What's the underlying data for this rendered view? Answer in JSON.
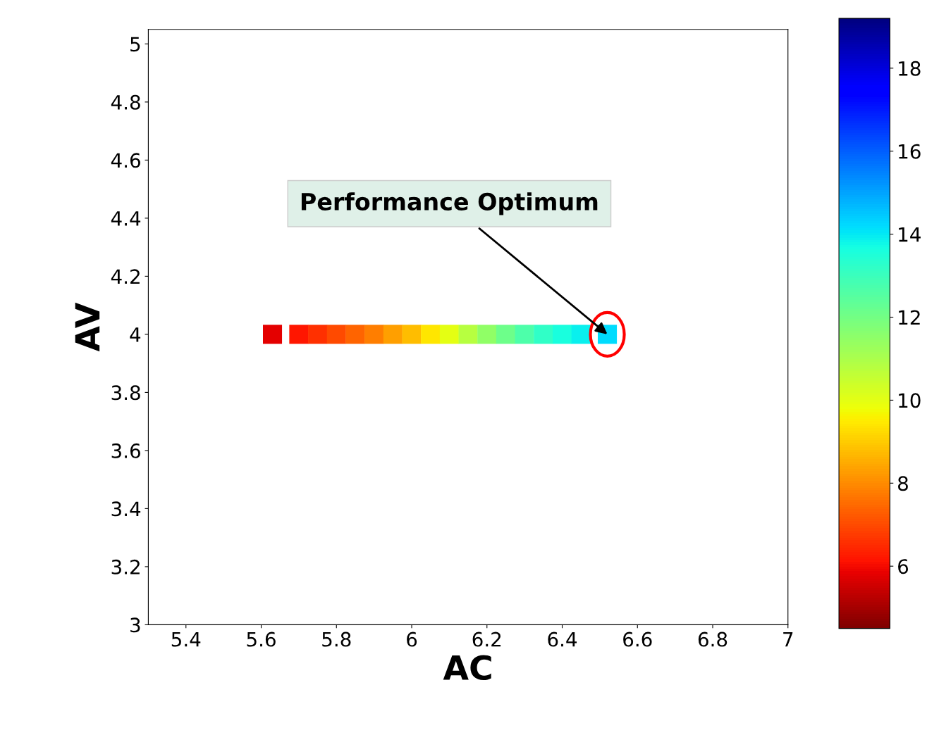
{
  "chart_data": {
    "type": "scatter",
    "xlabel": "AC",
    "ylabel": "AV",
    "x": [
      5.63,
      5.7,
      5.75,
      5.8,
      5.85,
      5.9,
      5.95,
      6.0,
      6.05,
      6.1,
      6.15,
      6.2,
      6.25,
      6.3,
      6.35,
      6.4,
      6.45,
      6.52
    ],
    "values": [
      4.0,
      4.0,
      4.0,
      4.0,
      4.0,
      4.0,
      4.0,
      4.0,
      4.0,
      4.0,
      4.0,
      4.0,
      4.0,
      4.0,
      4.0,
      4.0,
      4.0,
      4.0
    ],
    "cvalues": [
      5.8,
      6.2,
      6.6,
      7.0,
      7.4,
      7.8,
      8.3,
      8.8,
      9.4,
      10.0,
      10.8,
      11.5,
      12.1,
      12.7,
      13.2,
      13.6,
      13.9,
      14.2
    ],
    "marker": "square",
    "grid": false,
    "xlim": [
      5.3,
      7
    ],
    "xticks": [
      5.4,
      5.6,
      5.8,
      6,
      6.2,
      6.4,
      6.6,
      6.8,
      7
    ],
    "ylim": [
      3,
      5.05
    ],
    "yticks": [
      3,
      3.2,
      3.4,
      3.6,
      3.8,
      4,
      4.2,
      4.4,
      4.6,
      4.8,
      5
    ],
    "clim": [
      4.5,
      19.2
    ],
    "cticks": [
      6,
      8,
      10,
      12,
      14,
      16,
      18
    ],
    "annotations": [
      {
        "text": "Performance Optimum",
        "x": 6.52,
        "y": 4.0
      }
    ]
  }
}
